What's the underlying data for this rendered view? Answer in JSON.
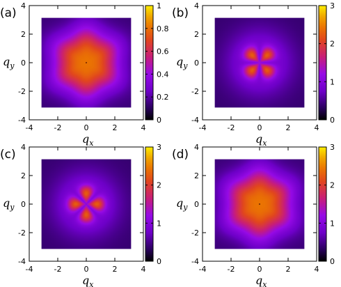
{
  "chart_data": [
    {
      "type": "heatmap",
      "panel_label": "(a)",
      "pattern": "hexagonal-round",
      "xlabel": "q",
      "xlabel_sub": "x",
      "ylabel": "q",
      "ylabel_sub": "y",
      "xlim": [
        -4,
        4
      ],
      "ylim": [
        -4,
        4
      ],
      "data_extent": [
        -3.14,
        3.14
      ],
      "xticks": [
        -4,
        -2,
        0,
        2,
        4
      ],
      "yticks": [
        -4,
        -2,
        0,
        2,
        4
      ],
      "colorbar": {
        "min": 0,
        "max": 1,
        "ticks": [
          0,
          0.2,
          0.4,
          0.6,
          0.8,
          1
        ]
      },
      "center_value": 1.0
    },
    {
      "type": "heatmap",
      "panel_label": "(b)",
      "pattern": "four-lobe-diagonal",
      "xlabel": "q",
      "xlabel_sub": "x",
      "ylabel": "q",
      "ylabel_sub": "y",
      "xlim": [
        -4,
        4
      ],
      "ylim": [
        -4,
        4
      ],
      "data_extent": [
        -3.14,
        3.14
      ],
      "xticks": [
        -4,
        -2,
        0,
        2,
        4
      ],
      "yticks": [
        -4,
        -2,
        0,
        2,
        4
      ],
      "colorbar": {
        "min": 0,
        "max": 3,
        "ticks": [
          0,
          1,
          2,
          3
        ]
      },
      "peak_value": 2.3
    },
    {
      "type": "heatmap",
      "panel_label": "(c)",
      "pattern": "four-lobe-axial",
      "xlabel": "q",
      "xlabel_sub": "x",
      "ylabel": "q",
      "ylabel_sub": "y",
      "xlim": [
        -4,
        4
      ],
      "ylim": [
        -4,
        4
      ],
      "data_extent": [
        -3.14,
        3.14
      ],
      "xticks": [
        -4,
        -2,
        0,
        2,
        4
      ],
      "yticks": [
        -4,
        -2,
        0,
        2,
        4
      ],
      "colorbar": {
        "min": 0,
        "max": 3,
        "ticks": [
          0,
          1,
          2,
          3
        ]
      },
      "peak_value": 2.3
    },
    {
      "type": "heatmap",
      "panel_label": "(d)",
      "pattern": "hexagonal-round",
      "xlabel": "q",
      "xlabel_sub": "x",
      "ylabel": "q",
      "ylabel_sub": "y",
      "xlim": [
        -4,
        4
      ],
      "ylim": [
        -4,
        4
      ],
      "data_extent": [
        -3.14,
        3.14
      ],
      "xticks": [
        -4,
        -2,
        0,
        2,
        4
      ],
      "yticks": [
        -4,
        -2,
        0,
        2,
        4
      ],
      "colorbar": {
        "min": 0,
        "max": 3,
        "ticks": [
          0,
          1,
          2,
          3
        ]
      },
      "center_value": 2.25
    }
  ]
}
